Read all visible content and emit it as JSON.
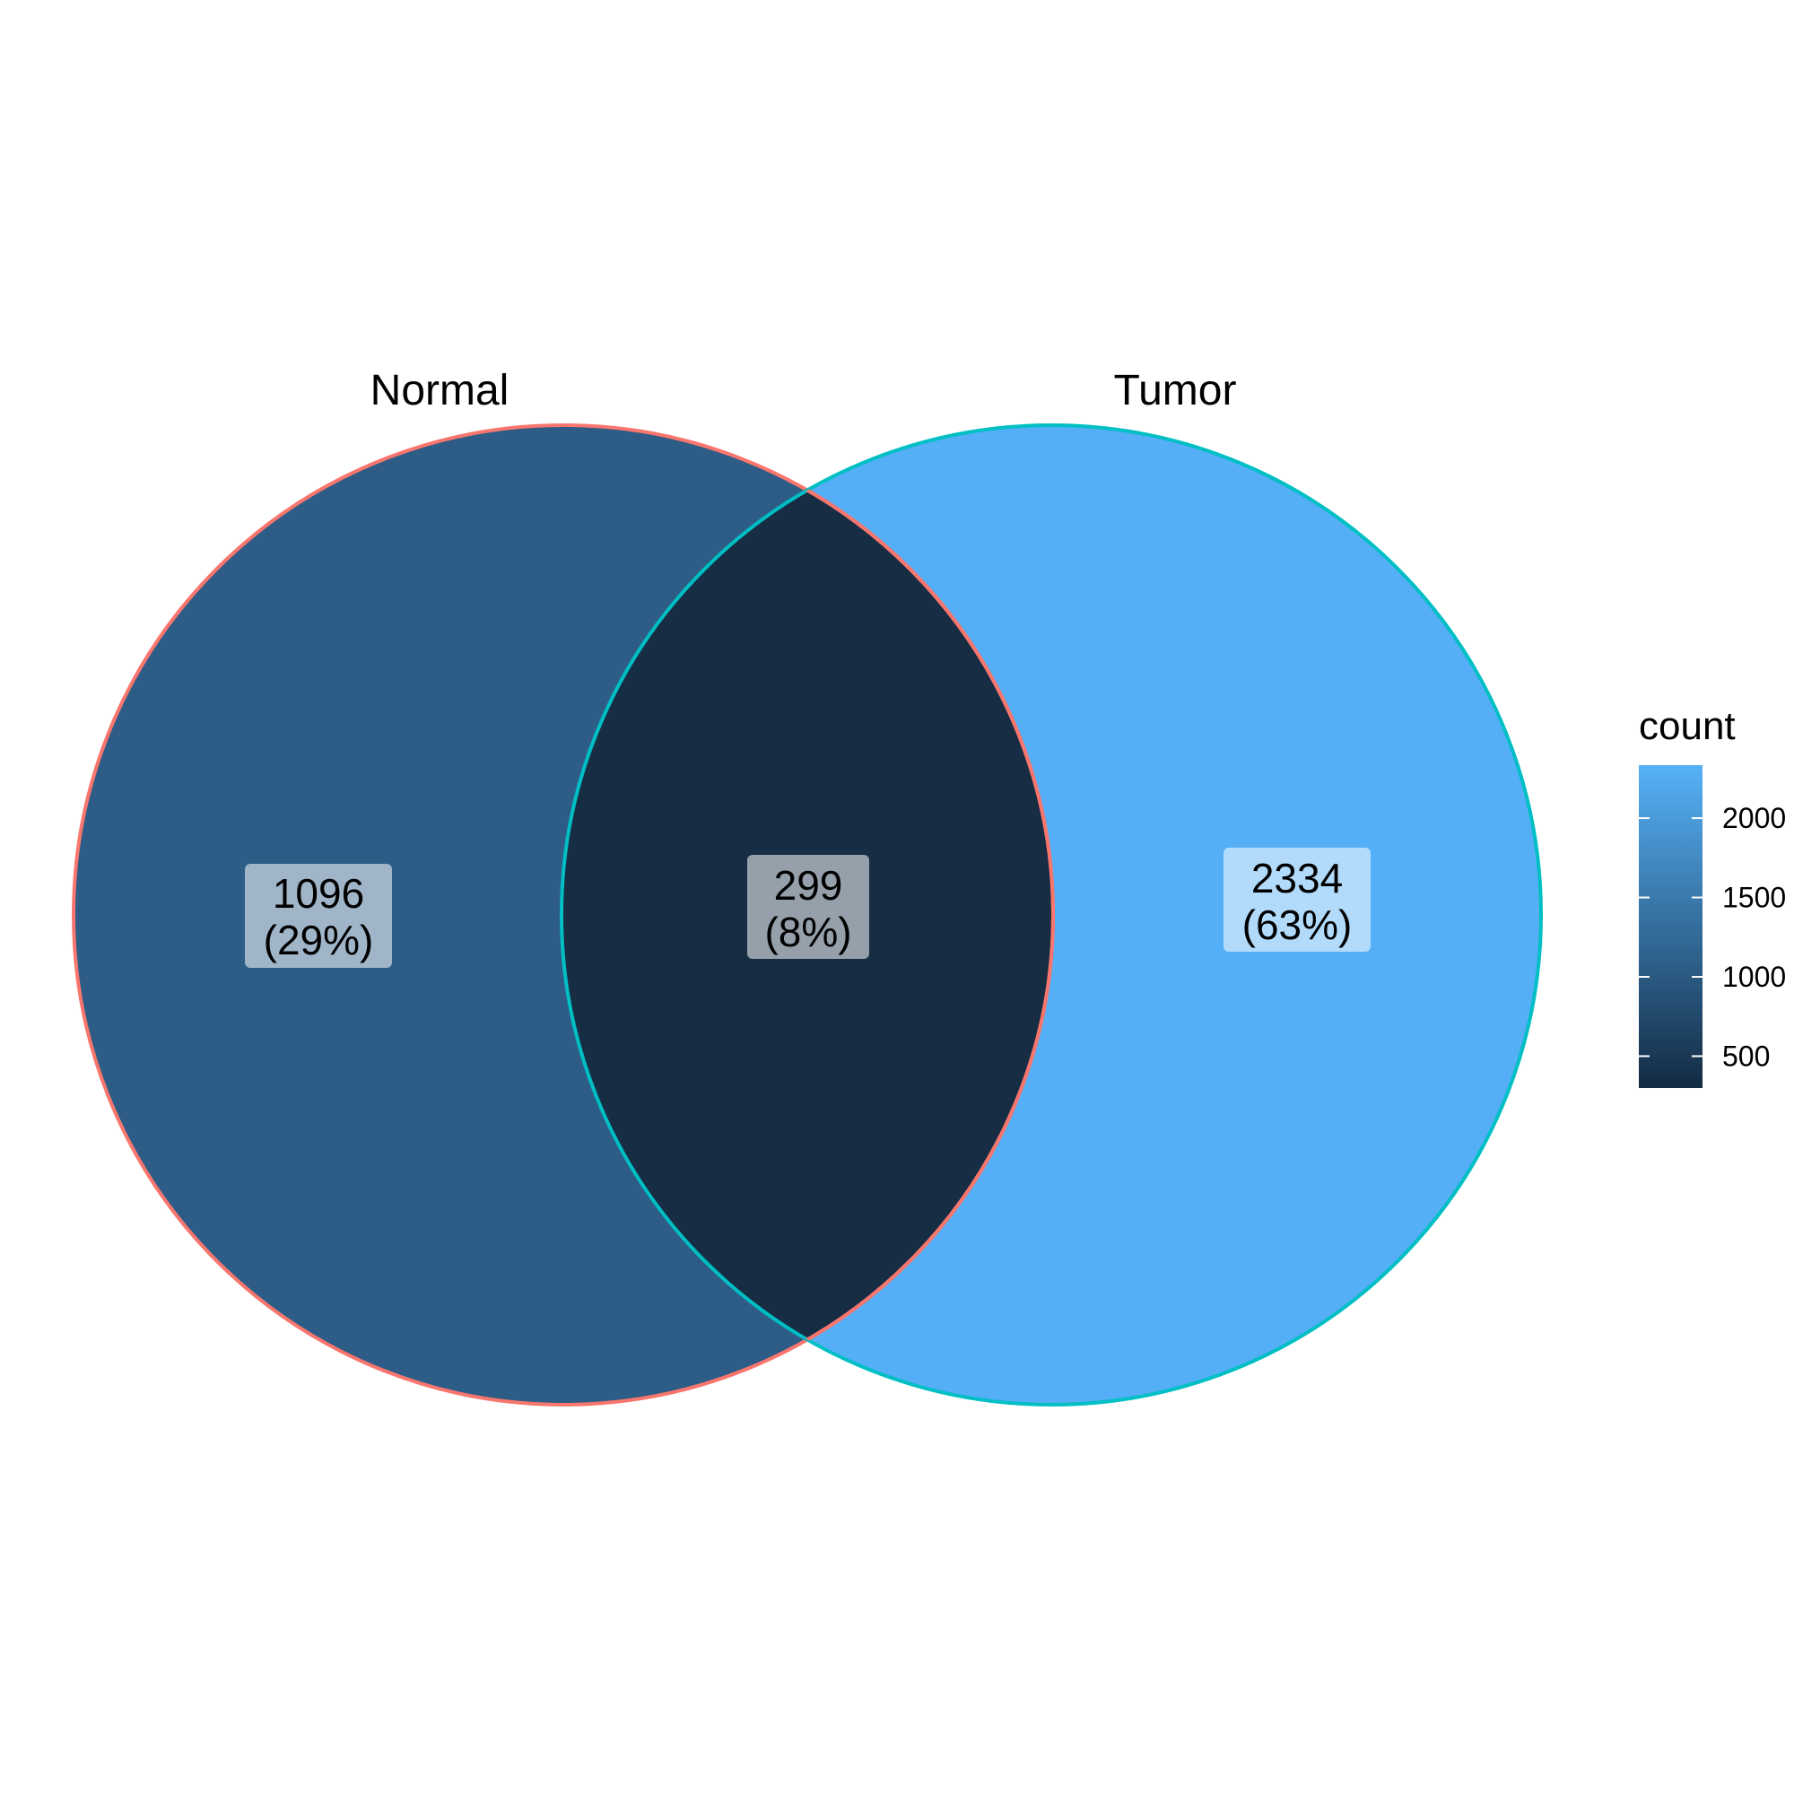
{
  "chart_data": {
    "type": "venn",
    "sets": [
      {
        "name": "Normal",
        "outline_color": "#F8766D"
      },
      {
        "name": "Tumor",
        "outline_color": "#00BFC4"
      }
    ],
    "regions": [
      {
        "id": "normal_only",
        "sets": [
          "Normal"
        ],
        "count": "1096",
        "percent": "(29%)",
        "value": 1096
      },
      {
        "id": "intersection",
        "sets": [
          "Normal",
          "Tumor"
        ],
        "count": "299",
        "percent": "(8%)",
        "value": 299
      },
      {
        "id": "tumor_only",
        "sets": [
          "Tumor"
        ],
        "count": "2334",
        "percent": "(63%)",
        "value": 2334
      }
    ],
    "legend": {
      "title": "count",
      "placement": "right",
      "range": [
        299,
        2334
      ],
      "color_low": "#132B43",
      "color_high": "#56B1F7",
      "ticks": [
        {
          "value": 500,
          "label": "500"
        },
        {
          "value": 1000,
          "label": "1000"
        },
        {
          "value": 1500,
          "label": "1500"
        },
        {
          "value": 2000,
          "label": "2000"
        }
      ]
    }
  }
}
